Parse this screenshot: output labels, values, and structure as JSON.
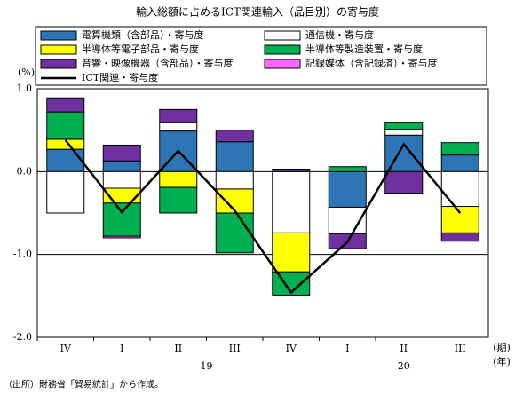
{
  "chart_data": {
    "type": "stacked-bar-line",
    "title": "輸入総額に占めるICT関連輸入（品目別）の寄与度",
    "y_unit": "(%)",
    "x_unit": "(期)",
    "year_unit": "(年)",
    "categories": [
      "IV",
      "I",
      "II",
      "III",
      "IV",
      "I",
      "II",
      "III"
    ],
    "years": [
      "19",
      "20"
    ],
    "ylim": [
      -2.0,
      1.0
    ],
    "yticks": [
      {
        "value": 1.0,
        "label": "1.0"
      },
      {
        "value": 0.0,
        "label": "0.0"
      },
      {
        "value": -1.0,
        "label": "-1.0"
      },
      {
        "value": -2.0,
        "label": "-2.0"
      }
    ],
    "grid": true,
    "series": [
      {
        "name": "電算機類（含部品）・寄与度",
        "color": "#2e75b6",
        "values": [
          0.27,
          0.13,
          0.49,
          0.36,
          0,
          -0.43,
          0.44,
          0.2
        ]
      },
      {
        "name": "通信機・寄与度",
        "color": "#ffffff",
        "values": [
          -0.5,
          -0.2,
          0.1,
          -0.21,
          -0.74,
          -0.32,
          0.07,
          -0.42
        ]
      },
      {
        "name": "半導体等電子部品・寄与度",
        "color": "#ffff00",
        "values": [
          0.12,
          -0.18,
          -0.19,
          -0.29,
          -0.47,
          0,
          0,
          -0.32
        ]
      },
      {
        "name": "半導体等製造装置・寄与度",
        "color": "#00b050",
        "values": [
          0.33,
          -0.4,
          -0.31,
          -0.48,
          -0.28,
          0.06,
          0.08,
          0.15
        ]
      },
      {
        "name": "音響・映像機器（含部品）・寄与度",
        "color": "#7030a0",
        "values": [
          0.17,
          0.19,
          0.16,
          0.14,
          0.03,
          -0.18,
          -0.26,
          -0.1
        ]
      },
      {
        "name": "記録媒体（含記録済）・寄与度",
        "color": "#ff66ff",
        "values": [
          0,
          -0.02,
          0,
          0,
          0,
          0,
          0,
          0
        ]
      },
      {
        "name": "ICT関連・寄与度",
        "color": "#000000",
        "kind": "line",
        "values": [
          0.38,
          -0.49,
          0.25,
          -0.47,
          -1.46,
          -0.85,
          0.33,
          -0.5
        ]
      }
    ],
    "source": "（出所）財務省「貿易統計」から作成。"
  }
}
